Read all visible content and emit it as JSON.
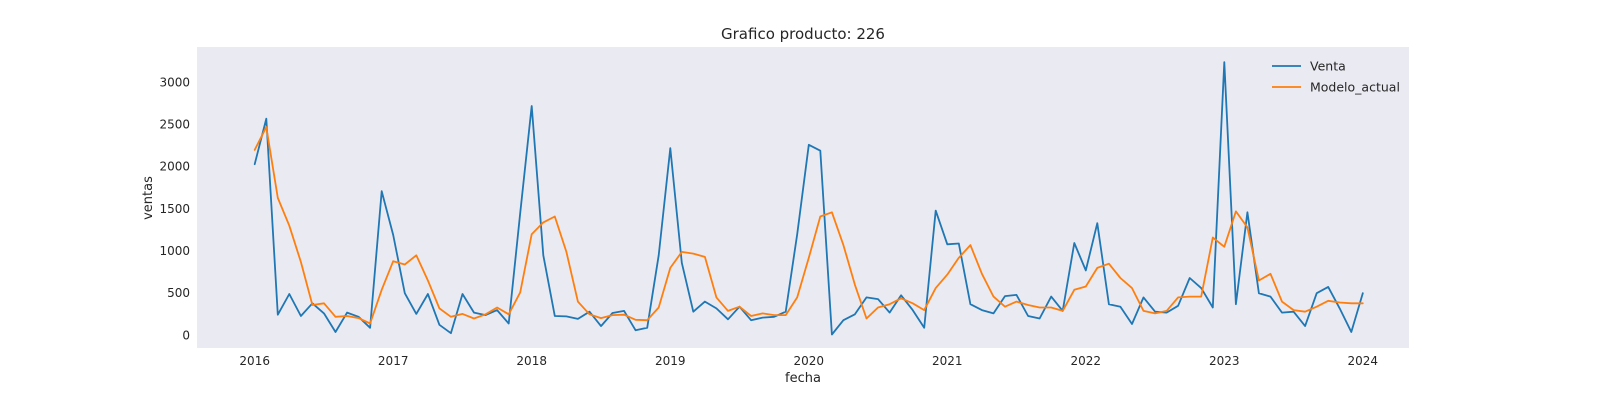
{
  "chart_data": {
    "type": "line",
    "title": "Grafico producto: 226",
    "xlabel": "fecha",
    "ylabel": "ventas",
    "x_start": "2016-01",
    "x_frequency": "monthly",
    "x_ticks": [
      "2016",
      "2017",
      "2018",
      "2019",
      "2020",
      "2021",
      "2022",
      "2023",
      "2024"
    ],
    "y_ticks": [
      "0",
      "500",
      "1000",
      "1500",
      "2000",
      "2500",
      "3000"
    ],
    "xlim": [
      "2015-08",
      "2024-05"
    ],
    "ylim": [
      -150,
      3420
    ],
    "grid": false,
    "background": "#eaeaf2",
    "legend": "top-right",
    "series": [
      {
        "name": "Venta",
        "color": "#1f77b4",
        "values": [
          2030,
          2570,
          245,
          490,
          230,
          380,
          260,
          40,
          270,
          220,
          90,
          1710,
          1190,
          500,
          255,
          490,
          125,
          25,
          490,
          270,
          240,
          300,
          140,
          1450,
          2720,
          950,
          230,
          225,
          195,
          280,
          110,
          265,
          290,
          60,
          90,
          950,
          2220,
          860,
          280,
          400,
          320,
          190,
          340,
          180,
          210,
          220,
          280,
          1200,
          2260,
          2190,
          10,
          180,
          250,
          450,
          430,
          270,
          475,
          300,
          90,
          1480,
          1080,
          1090,
          370,
          300,
          260,
          465,
          480,
          230,
          200,
          460,
          290,
          1095,
          770,
          1330,
          370,
          340,
          135,
          450,
          280,
          270,
          350,
          680,
          560,
          330,
          3240,
          370,
          1460,
          500,
          460,
          270,
          280,
          110,
          500,
          575,
          320,
          40,
          500
        ]
      },
      {
        "name": "Modelo_actual",
        "color": "#ff7f0e",
        "values": [
          2200,
          2470,
          1630,
          1300,
          870,
          360,
          380,
          220,
          230,
          205,
          140,
          540,
          880,
          840,
          950,
          650,
          320,
          220,
          255,
          200,
          250,
          330,
          250,
          510,
          1200,
          1340,
          1410,
          990,
          400,
          250,
          205,
          240,
          245,
          185,
          180,
          330,
          800,
          990,
          970,
          930,
          450,
          290,
          340,
          230,
          260,
          240,
          240,
          450,
          920,
          1410,
          1460,
          1070,
          600,
          200,
          330,
          370,
          440,
          380,
          300,
          560,
          720,
          920,
          1070,
          730,
          460,
          340,
          400,
          360,
          330,
          330,
          290,
          540,
          580,
          800,
          850,
          680,
          560,
          290,
          260,
          290,
          450,
          460,
          460,
          1160,
          1050,
          1470,
          1280,
          650,
          730,
          400,
          300,
          280,
          340,
          410,
          390,
          380,
          380
        ]
      }
    ]
  }
}
